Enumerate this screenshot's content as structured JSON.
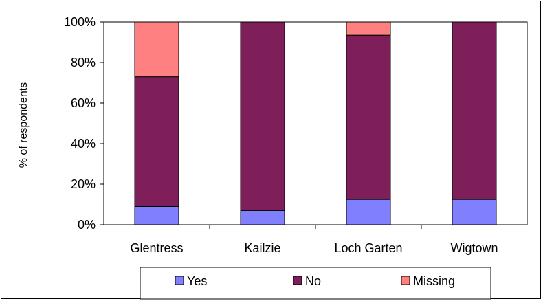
{
  "chart_data": {
    "type": "bar",
    "stacked": true,
    "percent": true,
    "categories": [
      "Glentress",
      "Kailzie",
      "Loch Garten",
      "Wigtown"
    ],
    "series": [
      {
        "name": "Yes",
        "color": "#8080FF",
        "values": [
          9,
          7,
          12.5,
          12.5
        ]
      },
      {
        "name": "No",
        "color": "#7F1F5A",
        "values": [
          64,
          93,
          81,
          87.5
        ]
      },
      {
        "name": "Missing",
        "color": "#FF8080",
        "values": [
          27,
          0,
          6.5,
          0
        ]
      }
    ],
    "ylabel": "% of respondents",
    "ylim": [
      0,
      100
    ],
    "yticks": [
      "0%",
      "20%",
      "40%",
      "60%",
      "80%",
      "100%"
    ],
    "legend_position": "bottom",
    "grid": false
  }
}
